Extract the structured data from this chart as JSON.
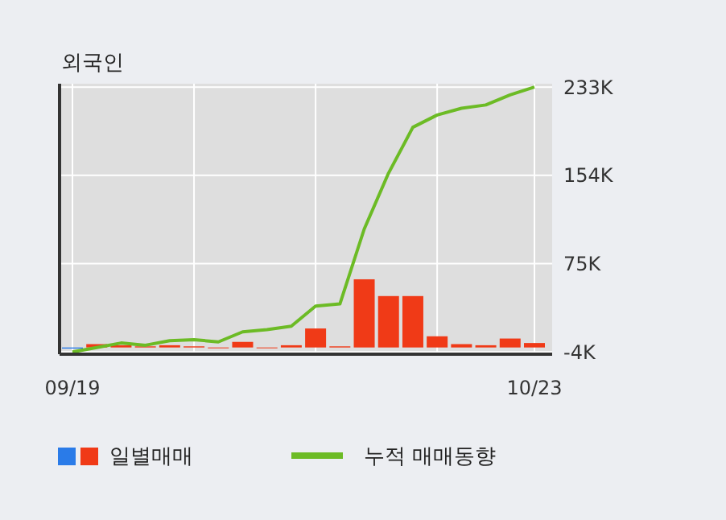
{
  "chart_data": {
    "type": "bar",
    "title": "외국인",
    "categories": [
      "09/19",
      null,
      null,
      null,
      null,
      null,
      null,
      null,
      null,
      null,
      null,
      null,
      null,
      null,
      null,
      null,
      null,
      null,
      null,
      "10/23"
    ],
    "series": [
      {
        "name": "일별매매",
        "colors": [
          "#2a7be8",
          "#f03a17",
          "#f03a17",
          "#f03a17",
          "#f03a17",
          "#f03a17",
          "#f03a17",
          "#f03a17",
          "#f03a17",
          "#f03a17",
          "#f03a17",
          "#f03a17",
          "#f03a17",
          "#f03a17",
          "#f03a17",
          "#f03a17",
          "#f03a17",
          "#f03a17",
          "#f03a17",
          "#f03a17"
        ],
        "values": [
          -1,
          3,
          2,
          1,
          2,
          1,
          0,
          5,
          0,
          2,
          17,
          1,
          61,
          46,
          46,
          10,
          3,
          2,
          8,
          4
        ]
      },
      {
        "type": "line",
        "name": "누적 매매동향",
        "color": "#6cbb25",
        "values": [
          -4,
          0,
          4,
          2,
          6,
          7,
          5,
          14,
          16,
          19,
          37,
          39,
          106,
          156,
          197,
          208,
          214,
          217,
          226,
          233
        ]
      }
    ],
    "ylim": [
      -6,
      236
    ],
    "yticks": [
      {
        "value": -4,
        "label": "-4K"
      },
      {
        "value": 75,
        "label": "75K"
      },
      {
        "value": 154,
        "label": "154K"
      },
      {
        "value": 233,
        "label": "233K"
      }
    ],
    "grid": true,
    "legend": "bottom"
  }
}
